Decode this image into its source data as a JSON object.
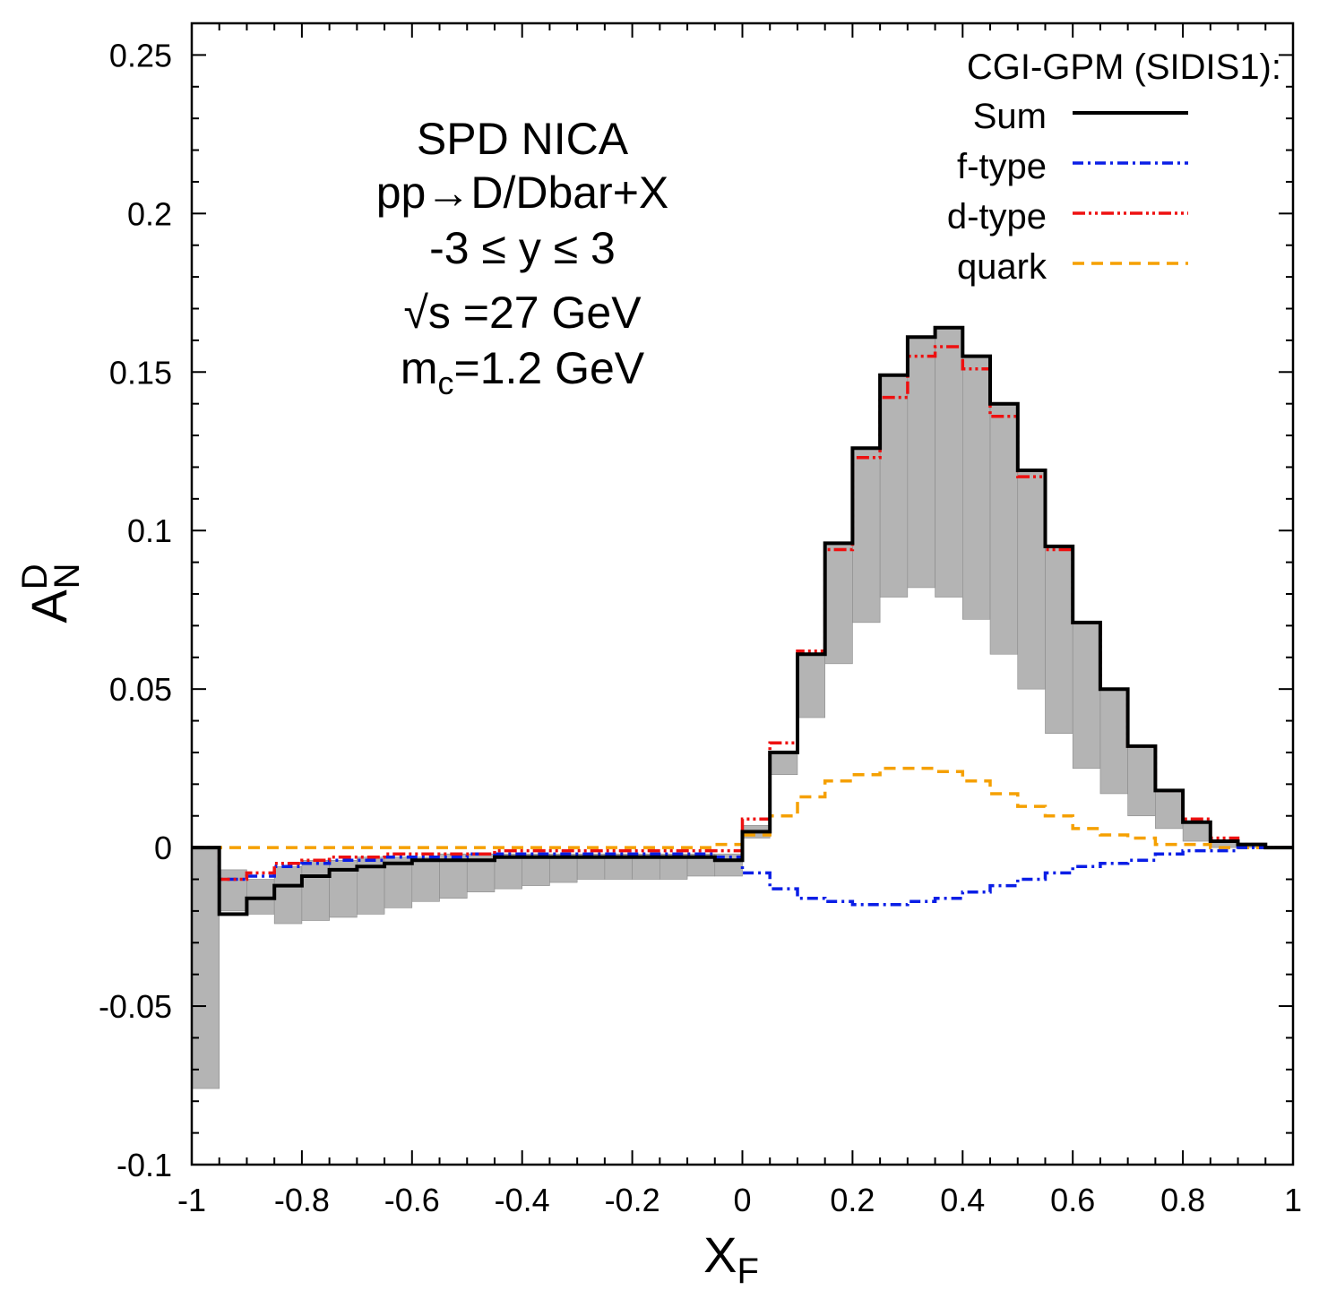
{
  "chart_data": {
    "type": "line",
    "title": "",
    "xlabel": "X",
    "xlabel_sub": "F",
    "ylabel": "A",
    "ylabel_sup": "D",
    "ylabel_sub": "N",
    "xlim": [
      -1,
      1
    ],
    "ylim": [
      -0.1,
      0.26
    ],
    "grid": false,
    "legend_position": "top-right",
    "x_ticks": [
      -1,
      -0.8,
      -0.6,
      -0.4,
      -0.2,
      0,
      0.2,
      0.4,
      0.6,
      0.8,
      1
    ],
    "x_tick_labels": [
      "-1",
      "-0.8",
      "-0.6",
      "-0.4",
      "-0.2",
      "0",
      "0.2",
      "0.4",
      "0.6",
      "0.8",
      "1"
    ],
    "y_ticks": [
      -0.1,
      -0.05,
      0,
      0.05,
      0.1,
      0.15,
      0.2,
      0.25
    ],
    "y_tick_labels": [
      "-0.1",
      "-0.05",
      "0",
      "0.05",
      "0.1",
      "0.15",
      "0.2",
      "0.25"
    ],
    "annotation_lines": [
      "SPD NICA",
      "pp→D/Dbar+X",
      "-3 ≤ y ≤ 3",
      "√s =27 GeV"
    ],
    "annotation_mass": {
      "prefix": "m",
      "sub": "c",
      "suffix": "=1.2 GeV"
    },
    "legend_title": "CGI-GPM (SIDIS1):",
    "bin_edges": [
      -1,
      -0.95,
      -0.9,
      -0.85,
      -0.8,
      -0.75,
      -0.7,
      -0.65,
      -0.6,
      -0.55,
      -0.5,
      -0.45,
      -0.4,
      -0.35,
      -0.3,
      -0.25,
      -0.2,
      -0.15,
      -0.1,
      -0.05,
      0,
      0.05,
      0.1,
      0.15,
      0.2,
      0.25,
      0.3,
      0.35,
      0.4,
      0.45,
      0.5,
      0.55,
      0.6,
      0.65,
      0.7,
      0.75,
      0.8,
      0.85,
      0.9,
      0.95,
      1
    ],
    "band": {
      "name": "uncertainty band",
      "color": "#b4b4b4",
      "upper": [
        0,
        -0.007,
        -0.01,
        -0.006,
        -0.004,
        -0.004,
        -0.003,
        -0.003,
        -0.003,
        -0.002,
        -0.002,
        -0.002,
        -0.002,
        -0.002,
        -0.002,
        -0.002,
        -0.002,
        -0.002,
        -0.002,
        -0.002,
        0.007,
        0.03,
        0.061,
        0.096,
        0.126,
        0.149,
        0.161,
        0.164,
        0.155,
        0.14,
        0.119,
        0.095,
        0.071,
        0.05,
        0.032,
        0.018,
        0.008,
        0.002,
        0.001,
        0
      ],
      "lower": [
        -0.076,
        -0.02,
        -0.021,
        -0.024,
        -0.023,
        -0.022,
        -0.021,
        -0.019,
        -0.017,
        -0.016,
        -0.014,
        -0.013,
        -0.012,
        -0.011,
        -0.01,
        -0.01,
        -0.01,
        -0.01,
        -0.009,
        -0.009,
        0.003,
        0.023,
        0.041,
        0.058,
        0.071,
        0.079,
        0.082,
        0.079,
        0.072,
        0.061,
        0.05,
        0.036,
        0.025,
        0.017,
        0.01,
        0.006,
        0.002,
        0,
        0,
        0
      ]
    },
    "series": [
      {
        "name": "Sum",
        "color": "#000000",
        "style": "solid",
        "values": [
          0,
          -0.021,
          -0.016,
          -0.012,
          -0.009,
          -0.007,
          -0.006,
          -0.005,
          -0.004,
          -0.004,
          -0.004,
          -0.003,
          -0.003,
          -0.003,
          -0.003,
          -0.003,
          -0.003,
          -0.003,
          -0.003,
          -0.004,
          0.005,
          0.03,
          0.061,
          0.096,
          0.126,
          0.149,
          0.161,
          0.164,
          0.155,
          0.14,
          0.119,
          0.095,
          0.071,
          0.05,
          0.032,
          0.018,
          0.008,
          0.002,
          0.001,
          0
        ]
      },
      {
        "name": "f-type",
        "color": "#0a1ee6",
        "style": "dashdot",
        "values": [
          0,
          -0.01,
          -0.009,
          -0.006,
          -0.005,
          -0.004,
          -0.004,
          -0.003,
          -0.003,
          -0.003,
          -0.002,
          -0.002,
          -0.002,
          -0.002,
          -0.002,
          -0.002,
          -0.002,
          -0.002,
          -0.002,
          -0.003,
          -0.008,
          -0.013,
          -0.016,
          -0.017,
          -0.018,
          -0.018,
          -0.017,
          -0.016,
          -0.014,
          -0.012,
          -0.01,
          -0.008,
          -0.006,
          -0.005,
          -0.004,
          -0.002,
          -0.001,
          -0.001,
          0,
          0
        ]
      },
      {
        "name": "d-type",
        "color": "#ee1010",
        "style": "dashdotdot",
        "values": [
          0,
          -0.01,
          -0.008,
          -0.005,
          -0.004,
          -0.003,
          -0.003,
          -0.002,
          -0.002,
          -0.002,
          -0.002,
          -0.001,
          -0.001,
          -0.001,
          -0.001,
          -0.001,
          -0.001,
          -0.001,
          -0.001,
          -0.001,
          0.009,
          0.033,
          0.062,
          0.094,
          0.123,
          0.142,
          0.155,
          0.158,
          0.151,
          0.136,
          0.117,
          0.094,
          0.071,
          0.05,
          0.032,
          0.018,
          0.009,
          0.003,
          0.001,
          0
        ]
      },
      {
        "name": "quark",
        "color": "#f5a000",
        "style": "dashed",
        "values": [
          0,
          0,
          0,
          0,
          0,
          0,
          0,
          0,
          0,
          0,
          0,
          0,
          0,
          0,
          0,
          0,
          0,
          0,
          0,
          0.001,
          0.004,
          0.01,
          0.016,
          0.021,
          0.023,
          0.025,
          0.025,
          0.024,
          0.021,
          0.017,
          0.013,
          0.01,
          0.006,
          0.004,
          0.003,
          0.001,
          0.001,
          0,
          0,
          0
        ]
      }
    ]
  }
}
